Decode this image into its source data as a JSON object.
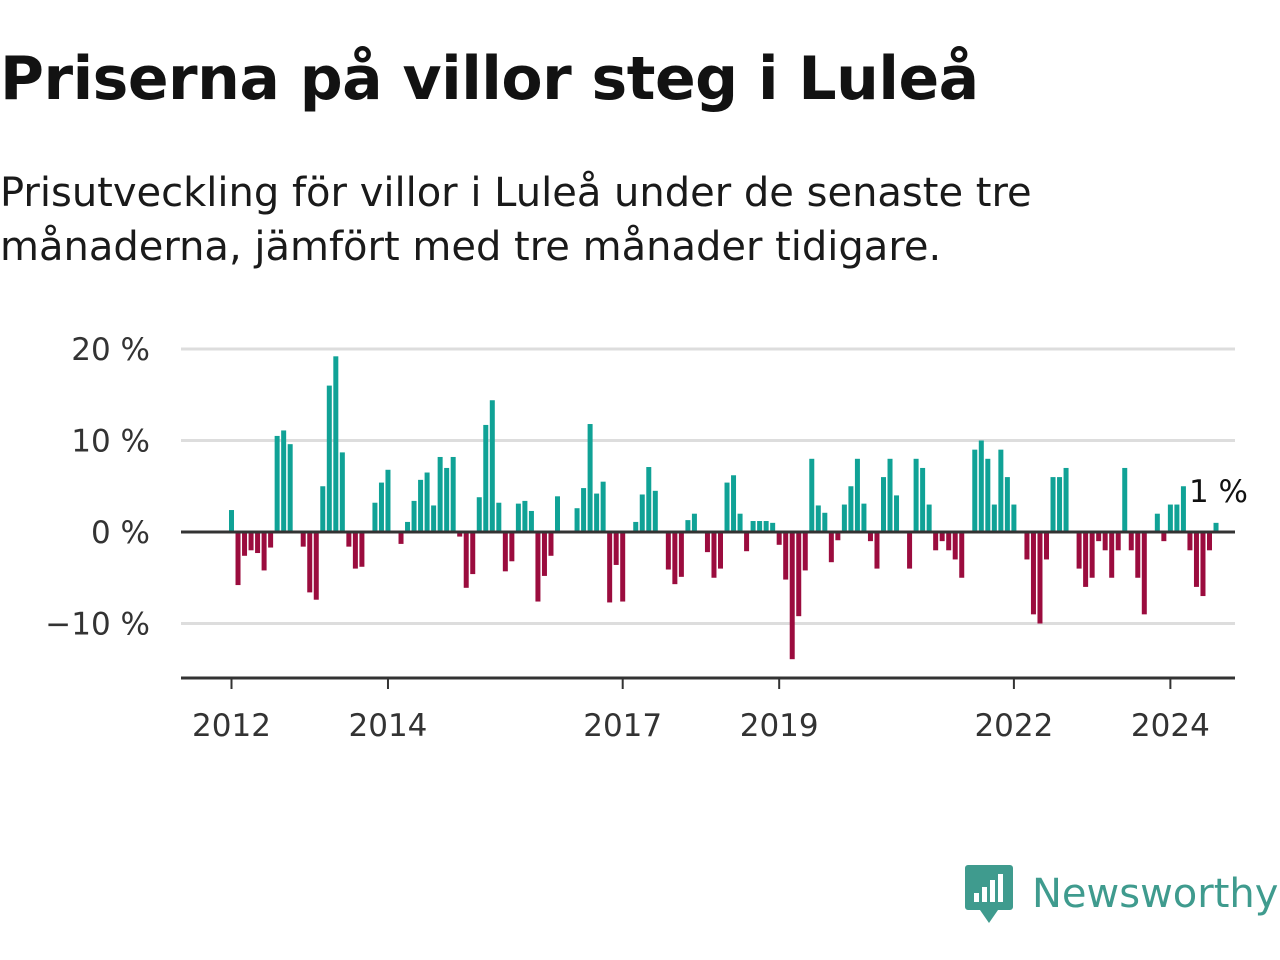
{
  "title": "Priserna på villor steg i Luleå",
  "subtitle": "Prisutveckling för villor i Luleå under de senaste tre månaderna, jämfört med tre månader tidigare.",
  "brand": {
    "name": "Newsworthy",
    "icon": "newsworthy-logo-icon"
  },
  "colors": {
    "positive": "#10a296",
    "negative": "#9b0c3e",
    "grid": "#dddddd",
    "axis": "#333333"
  },
  "chart_data": {
    "type": "bar",
    "title": "Priserna på villor steg i Luleå",
    "xlabel": "",
    "ylabel": "",
    "ylim": [
      -15.9,
      20
    ],
    "grid": true,
    "yticks": [
      -10,
      0,
      10,
      20
    ],
    "ytick_labels": [
      "−10 %",
      "0 %",
      "10 %",
      "20 %"
    ],
    "start_year": 2012,
    "start_month": 1,
    "xticks": [
      "2012",
      "2014",
      "2017",
      "2019",
      "2022",
      "2024"
    ],
    "last_label": "1 %",
    "unit": "%",
    "values": [
      2.4,
      -5.8,
      -2.6,
      -2.0,
      -2.3,
      -4.2,
      -1.7,
      10.5,
      11.1,
      9.6,
      null,
      -1.6,
      -6.6,
      -7.4,
      5.0,
      16.0,
      19.2,
      8.7,
      -1.6,
      -4.0,
      -3.8,
      null,
      3.2,
      5.4,
      6.8,
      null,
      -1.3,
      1.1,
      3.4,
      5.7,
      6.5,
      2.9,
      8.2,
      7.0,
      8.2,
      -0.5,
      -6.1,
      -4.6,
      3.8,
      11.7,
      14.4,
      3.2,
      -4.3,
      -3.2,
      3.1,
      3.4,
      2.3,
      -7.6,
      -4.8,
      -2.6,
      3.9,
      null,
      null,
      2.6,
      4.8,
      11.8,
      4.2,
      5.5,
      -7.7,
      -3.6,
      -7.6,
      null,
      1.1,
      4.1,
      7.1,
      4.5,
      null,
      -4.1,
      -5.7,
      -4.9,
      1.3,
      2.0,
      null,
      -2.2,
      -5.0,
      -4.0,
      5.4,
      6.2,
      2.0,
      -2.1,
      1.2,
      1.2,
      1.2,
      1.0,
      -1.4,
      -5.2,
      -13.9,
      -9.2,
      -4.2,
      8.0,
      2.9,
      2.1,
      -3.3,
      -0.9,
      3.0,
      5.0,
      8.0,
      3.1,
      -1.0,
      -4.0,
      6.0,
      8.0,
      4.0,
      null,
      -4.0,
      8.0,
      7.0,
      3.0,
      -2.0,
      -1.0,
      -2.0,
      -3.0,
      -5.0,
      null,
      9.0,
      10.0,
      8.0,
      3.0,
      9.0,
      6.0,
      3.0,
      null,
      -3.0,
      -9.0,
      -10.0,
      -3.0,
      6.0,
      6.0,
      7.0,
      null,
      -4.0,
      -6.0,
      -5.0,
      -1.0,
      -2.0,
      -5.0,
      -2.0,
      7.0,
      -2.0,
      -5.0,
      -9.0,
      null,
      2.0,
      -1.0,
      3.0,
      3.0,
      5.0,
      -2.0,
      -6.0,
      -7.0,
      -2.0,
      1.0
    ]
  }
}
